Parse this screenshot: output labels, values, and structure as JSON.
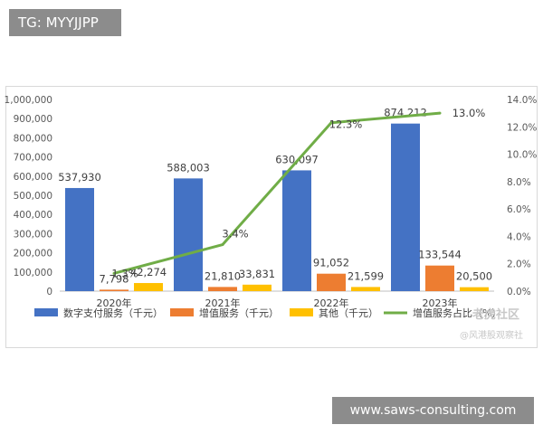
{
  "header": {
    "tag": "TG: MYYJJPP"
  },
  "footer": {
    "site": "www.saws-consulting.com"
  },
  "watermark": {
    "brand": "老虎社区",
    "author": "@风港股观察社"
  },
  "chart_data": {
    "type": "bar",
    "categories": [
      "2020年",
      "2021年",
      "2022年",
      "2023年"
    ],
    "series": [
      {
        "name": "数字支付服务（千元）",
        "kind": "bar",
        "axis": "left",
        "color": "#4472c4",
        "values": [
          537930,
          588003,
          630097,
          874212
        ],
        "labels": [
          "537,930",
          "588,003",
          "630,097",
          "874,212"
        ]
      },
      {
        "name": "增值服务（千元）",
        "kind": "bar",
        "axis": "left",
        "color": "#ed7d31",
        "values": [
          7798,
          21810,
          91052,
          133544
        ],
        "labels": [
          "7,798",
          "21,810",
          "91,052",
          "133,544"
        ]
      },
      {
        "name": "其他（千元）",
        "kind": "bar",
        "axis": "left",
        "color": "#ffc000",
        "values": [
          42274,
          33831,
          21599,
          20500
        ],
        "labels": [
          "42,274",
          "33,831",
          "21,599",
          "20,500"
        ]
      },
      {
        "name": "增值服务占比（%）",
        "kind": "line",
        "axis": "right",
        "color": "#70ad47",
        "values": [
          1.3,
          3.4,
          12.3,
          13.0
        ],
        "labels": [
          "1.3%",
          "3.4%",
          "12.3%",
          "13.0%"
        ]
      }
    ],
    "y_left": {
      "ylim": [
        0,
        1000000
      ],
      "ticks": [
        0,
        100000,
        200000,
        300000,
        400000,
        500000,
        600000,
        700000,
        800000,
        900000,
        1000000
      ],
      "tick_labels": [
        "0",
        "100,000",
        "200,000",
        "300,000",
        "400,000",
        "500,000",
        "600,000",
        "700,000",
        "800,000",
        "900,000",
        "1,000,000"
      ]
    },
    "y_right": {
      "ylim": [
        0,
        14
      ],
      "ticks": [
        0,
        2,
        4,
        6,
        8,
        10,
        12,
        14
      ],
      "tick_labels": [
        "0.0%",
        "2.0%",
        "4.0%",
        "6.0%",
        "8.0%",
        "10.0%",
        "12.0%",
        "14.0%"
      ]
    },
    "grid": false,
    "legend_position": "bottom",
    "title": ""
  }
}
